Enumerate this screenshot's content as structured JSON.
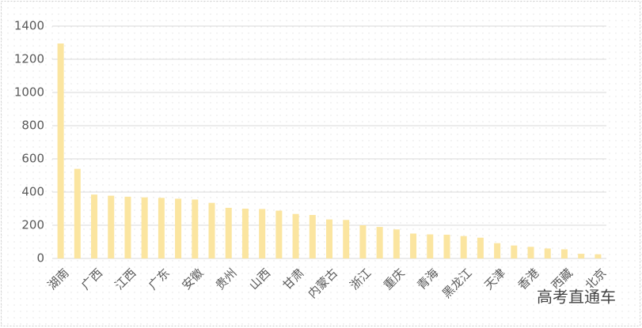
{
  "chart_data": {
    "type": "bar",
    "categories": [
      "湖南",
      null,
      "广西",
      null,
      "江西",
      null,
      "广东",
      null,
      "安徽",
      null,
      "贵州",
      null,
      "山西",
      null,
      "甘肃",
      null,
      "内蒙古",
      null,
      "浙江",
      null,
      "重庆",
      null,
      "青海",
      null,
      "黑龙江",
      null,
      "天津",
      null,
      "香港",
      null,
      "西藏",
      null,
      "北京"
    ],
    "values": [
      1295,
      540,
      385,
      378,
      372,
      368,
      365,
      360,
      355,
      335,
      305,
      300,
      298,
      288,
      268,
      262,
      235,
      232,
      200,
      190,
      175,
      150,
      145,
      143,
      135,
      125,
      92,
      78,
      70,
      60,
      55,
      28,
      25
    ],
    "color": "#fbe5a0",
    "ylim": [
      0,
      1400
    ],
    "yticks": [
      0,
      200,
      400,
      600,
      800,
      1000,
      1200,
      1400
    ],
    "grid": true
  },
  "watermark": "高考直通车"
}
